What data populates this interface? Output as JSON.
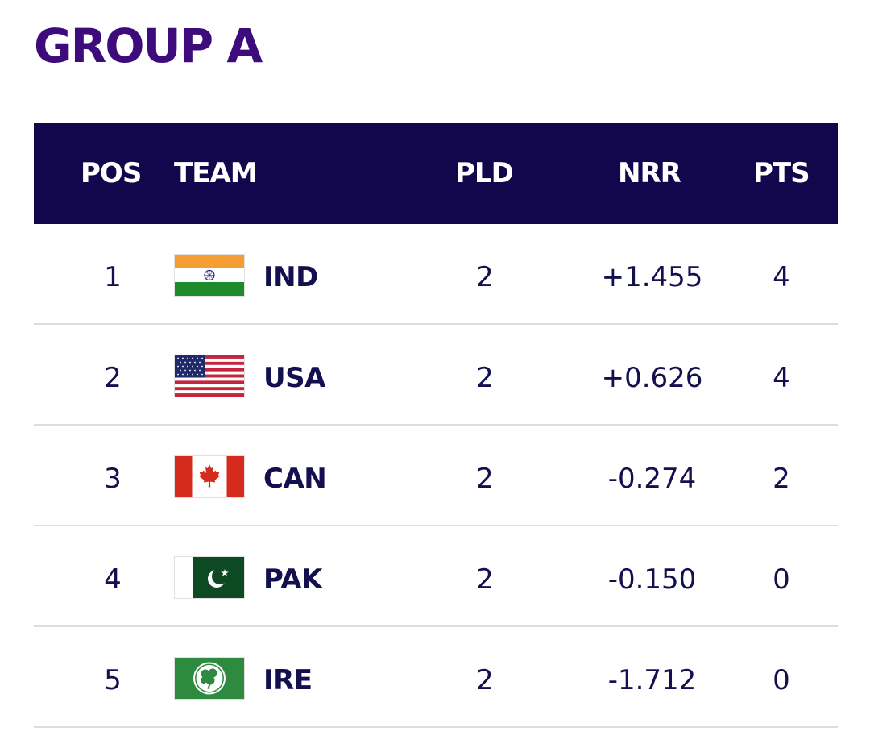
{
  "group_title": "GROUP A",
  "headers": {
    "pos": "POS",
    "team": "TEAM",
    "pld": "PLD",
    "nrr": "NRR",
    "pts": "PTS"
  },
  "rows": [
    {
      "pos": "1",
      "team": "IND",
      "flag_icon": "india-flag-icon",
      "pld": "2",
      "nrr": "+1.455",
      "pts": "4"
    },
    {
      "pos": "2",
      "team": "USA",
      "flag_icon": "usa-flag-icon",
      "pld": "2",
      "nrr": "+0.626",
      "pts": "4"
    },
    {
      "pos": "3",
      "team": "CAN",
      "flag_icon": "canada-flag-icon",
      "pld": "2",
      "nrr": "-0.274",
      "pts": "2"
    },
    {
      "pos": "4",
      "team": "PAK",
      "flag_icon": "pakistan-flag-icon",
      "pld": "2",
      "nrr": "-0.150",
      "pts": "0"
    },
    {
      "pos": "5",
      "team": "IRE",
      "flag_icon": "ireland-flag-icon",
      "pld": "2",
      "nrr": "-1.712",
      "pts": "0"
    }
  ],
  "colors": {
    "title": "#3d0b7c",
    "header_bg": "#12064d",
    "header_text": "#ffffff",
    "body_text": "#14104f",
    "divider": "#dedede"
  }
}
